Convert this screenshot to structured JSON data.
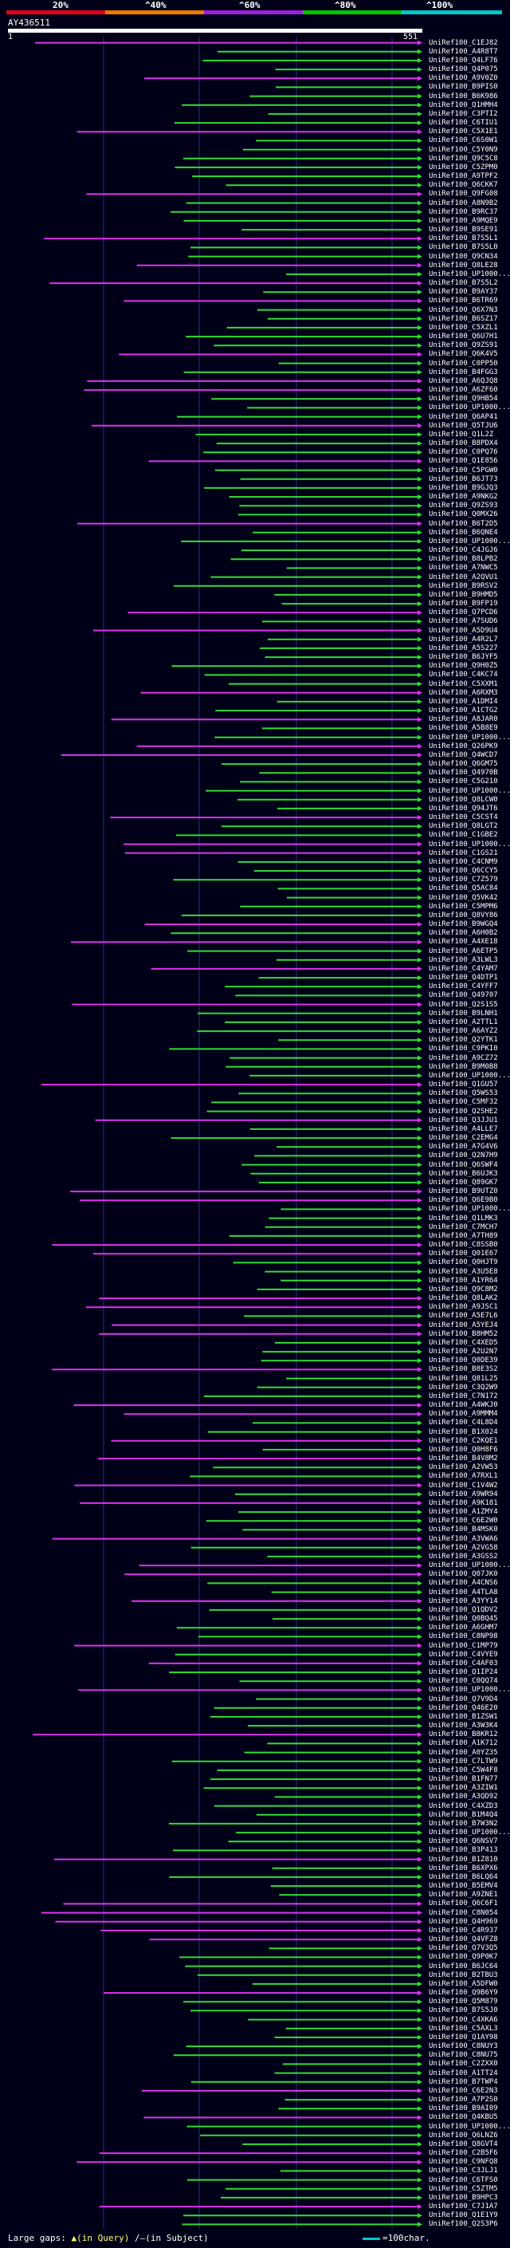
{
  "scale": {
    "labels": [
      "20%",
      "^40%",
      "^60%",
      "^80%",
      "^100%"
    ],
    "colors": [
      "#e8001a",
      "#f07800",
      "#a020e0",
      "#00c800",
      "#00c8c8"
    ]
  },
  "query": {
    "name": "AY436511",
    "start": "1",
    "end": "551"
  },
  "colors": {
    "pink": "#dd33ee",
    "green": "#33dd33",
    "background": "#000018"
  },
  "hits": [
    "UniRef100_C1EJ82",
    "UniRef100_A4R8T7",
    "UniRef100_Q4LF76",
    "UniRef100_Q4P075",
    "UniRef100_A9V0Z0",
    "UniRef100_B9PIS0",
    "UniRef100_B6K986",
    "UniRef100_Q1HMH4",
    "UniRef100_C3PTI2",
    "UniRef100_C6TIU1",
    "UniRef100_C5X1E1",
    "UniRef100_C6S0W1",
    "UniRef100_C5Y0N9",
    "UniRef100_Q9C5C8",
    "UniRef100_C5ZPM0",
    "UniRef100_A9TPF2",
    "UniRef100_Q6CKK7",
    "UniRef100_Q9FG08",
    "UniRef100_A8N9B2",
    "UniRef100_B9RC37",
    "UniRef100_A9MQE9",
    "UniRef100_B9SE91",
    "UniRef100_B7S5L1",
    "UniRef100_B7S5L0",
    "UniRef100_Q9CN34",
    "UniRef100_Q8LE28",
    "UniRef100_UP1000...",
    "UniRef100_B7S5L2",
    "UniRef100_B9AY37",
    "UniRef100_B6TR69",
    "UniRef100_Q6X7N3",
    "UniRef100_B6SZ17",
    "UniRef100_C5XZL1",
    "UniRef100_Q6U7H1",
    "UniRef100_Q9ZS91",
    "UniRef100_Q6K4V5",
    "UniRef100_C0PP50",
    "UniRef100_B4FGG3",
    "UniRef100_A6QJQ8",
    "UniRef100_A6ZF60",
    "UniRef100_Q9HB54",
    "UniRef100_UP1000...",
    "UniRef100_Q6AP41",
    "UniRef100_Q5TJU6",
    "UniRef100_Q1L2Z",
    "UniRef100_B8PDX4",
    "UniRef100_C0PQ76",
    "UniRef100_Q1E856",
    "UniRef100_C5PGW0",
    "UniRef100_B6JT73",
    "UniRef100_B9GJQ3",
    "UniRef100_A9NKG2",
    "UniRef100_Q9ZS93",
    "UniRef100_Q0MX26",
    "UniRef100_B6T2D5",
    "UniRef100_B6QNE4",
    "UniRef100_UP1000...",
    "UniRef100_C4JGJ6",
    "UniRef100_B8LPB2",
    "UniRef100_A7NWC5",
    "UniRef100_A2QVU1",
    "UniRef100_B9RSV2",
    "UniRef100_B9HMD5",
    "UniRef100_B9FP19",
    "UniRef100_Q7PCD6",
    "UniRef100_A7SUD6",
    "UniRef100_A5D9U4",
    "UniRef100_A4R2L7",
    "UniRef100_A5S227",
    "UniRef100_B6JYF5",
    "UniRef100_Q9H0Z5",
    "UniRef100_C4KC74",
    "UniRef100_C5XXM1",
    "UniRef100_A6RXM3",
    "UniRef100_A1DMI4",
    "UniRef100_A1CTG2",
    "UniRef100_A8JAR0",
    "UniRef100_A5B8E9",
    "UniRef100_UP1000...",
    "UniRef100_Q26PK9",
    "UniRef100_Q4WCD7",
    "UniRef100_Q6GM75",
    "UniRef100_Q4970B",
    "UniRef100_C5G210",
    "UniRef100_UP1000...",
    "UniRef100_Q8LCW0",
    "UniRef100_Q94JT6",
    "UniRef100_C5CST4",
    "UniRef100_Q8LGT2",
    "UniRef100_C1GBE2",
    "UniRef100_UP1000...",
    "UniRef100_C1GS21",
    "UniRef100_C4CNM9",
    "UniRef100_Q6CCY5",
    "UniRef100_C7Z579",
    "UniRef100_Q5AC84",
    "UniRef100_Q5VK42",
    "UniRef100_C5MPM6",
    "UniRef100_Q8VY86",
    "UniRef100_B9WGQ4",
    "UniRef100_A6H0B2",
    "UniRef100_A4XE18",
    "UniRef100_A6ETP5",
    "UniRef100_A3LWL3",
    "UniRef100_C4YAM7",
    "UniRef100_Q4DTP1",
    "UniRef100_C4YFF7",
    "UniRef100_Q49707",
    "UniRef100_Q2S1S5",
    "UniRef100_B9LNH1",
    "UniRef100_A2TTL1",
    "UniRef100_A6AYZ2",
    "UniRef100_Q2YTK1",
    "UniRef100_C9PKI0",
    "UniRef100_A9CZ72",
    "UniRef100_B9M0B8",
    "UniRef100_UP1000...",
    "UniRef100_Q1GU57",
    "UniRef100_Q5WS53",
    "UniRef100_C5MF32",
    "UniRef100_Q2SHE2",
    "UniRef100_Q3JJU1",
    "UniRef100_A4LLE7",
    "UniRef100_C2EMG4",
    "UniRef100_A7G4V6",
    "UniRef100_Q2N7H9",
    "UniRef100_Q6SWF4",
    "UniRef100_B6UJK3",
    "UniRef100_Q89GK7",
    "UniRef100_B9UTZ0",
    "UniRef100_Q6E9B0",
    "UniRef100_UP1000...",
    "UniRef100_Q1LMK3",
    "UniRef100_C7MCH7",
    "UniRef100_A7TH89",
    "UniRef100_C8SSB0",
    "UniRef100_Q01E67",
    "UniRef100_Q0HJT9",
    "UniRef100_A3U5E8",
    "UniRef100_A1YR64",
    "UniRef100_Q9C8M2",
    "UniRef100_Q8LAK2",
    "UniRef100_A9JSC1",
    "UniRef100_A5E7L6",
    "UniRef100_A5YEJ4",
    "UniRef100_B8HM52",
    "UniRef100_C4XED5",
    "UniRef100_A2U2N7",
    "UniRef100_Q0DE39",
    "UniRef100_B8E3S2",
    "UniRef100_Q81L25",
    "UniRef100_C3Q2W9",
    "UniRef100_C7N172",
    "UniRef100_A4WKJ0",
    "UniRef100_A9MMM4",
    "UniRef100_C4L8D4",
    "UniRef100_B1X024",
    "UniRef100_C2KQE1",
    "UniRef100_Q0H8F6",
    "UniRef100_B4V8M2",
    "UniRef100_A2VW53",
    "UniRef100_A7RXL1",
    "UniRef100_C1V4W2",
    "UniRef100_A9WR94",
    "UniRef100_A9K181",
    "UniRef100_A1ZMY4",
    "UniRef100_C6E2W0",
    "UniRef100_B4MSK0",
    "UniRef100_A3VWA6",
    "UniRef100_A2VG58",
    "UniRef100_A3GSS2",
    "UniRef100_UP1000...",
    "UniRef100_Q07JK0",
    "UniRef100_A4CNS6",
    "UniRef100_A4TLA8",
    "UniRef100_A3YY14",
    "UniRef100_Q1QDV2",
    "UniRef100_Q0BQ45",
    "UniRef100_A6GHM7",
    "UniRef100_C8NP98",
    "UniRef100_C1MP79",
    "UniRef100_C4VYE9",
    "UniRef100_C4AF03",
    "UniRef100_Q1IP24",
    "UniRef100_C0QQ74",
    "UniRef100_UP1000...",
    "UniRef100_Q7V9D4",
    "UniRef100_Q46E20",
    "UniRef100_B1ZSW1",
    "UniRef100_A3W3K4",
    "UniRef100_B8KR12",
    "UniRef100_A1K712",
    "UniRef100_A0YZ35",
    "UniRef100_C7LTW9",
    "UniRef100_C5W4F8",
    "UniRef100_B1FN77",
    "UniRef100_A3ZIW1",
    "UniRef100_A3QD92",
    "UniRef100_C4XZD3",
    "UniRef100_B1M4Q4",
    "UniRef100_B7W3N2",
    "UniRef100_UP1000...",
    "UniRef100_Q6NSV7",
    "UniRef100_B3P413",
    "UniRef100_B1Z810",
    "UniRef100_B6XPX6",
    "UniRef100_B6LQ64",
    "UniRef100_B5EMV4",
    "UniRef100_A9ZNE1",
    "UniRef100_Q6C6F1",
    "UniRef100_C8N054",
    "UniRef100_Q4H969",
    "UniRef100_C4R937",
    "UniRef100_Q4VFZ8",
    "UniRef100_Q7V3Q5",
    "UniRef100_Q9P0K7",
    "UniRef100_B6JC64",
    "UniRef100_B2TBU3",
    "UniRef100_A5DFW0",
    "UniRef100_Q9B6Y9",
    "UniRef100_Q5M879",
    "UniRef100_B7S5J0",
    "UniRef100_C4XKA6",
    "UniRef100_C5AXL3",
    "UniRef100_Q1AY98",
    "UniRef100_C8NUY3",
    "UniRef100_C8NU75",
    "UniRef100_C2ZXX0",
    "UniRef100_A1TT24",
    "UniRef100_B7TWP4",
    "UniRef100_C6E2N3",
    "UniRef100_A7P2S0",
    "UniRef100_B9AI09",
    "UniRef100_Q4KBU5",
    "UniRef100_UP1000...",
    "UniRef100_Q6LNZ6",
    "UniRef100_Q8GVT4",
    "UniRef100_C2B5F6",
    "UniRef100_C9NFQ8",
    "UniRef100_C3JLJ1",
    "UniRef100_C6TFS0",
    "UniRef100_C5ZTM5",
    "UniRef100_B9HPC3",
    "UniRef100_C7J1A7",
    "UniRef100_Q1E1Y9",
    "UniRef100_Q2S3P6"
  ],
  "footer": {
    "large_gaps": "Large gaps: ",
    "query_gap": "▲(in Query)",
    "subject_gap": "/—(in Subject)",
    "legend": "=100char."
  }
}
